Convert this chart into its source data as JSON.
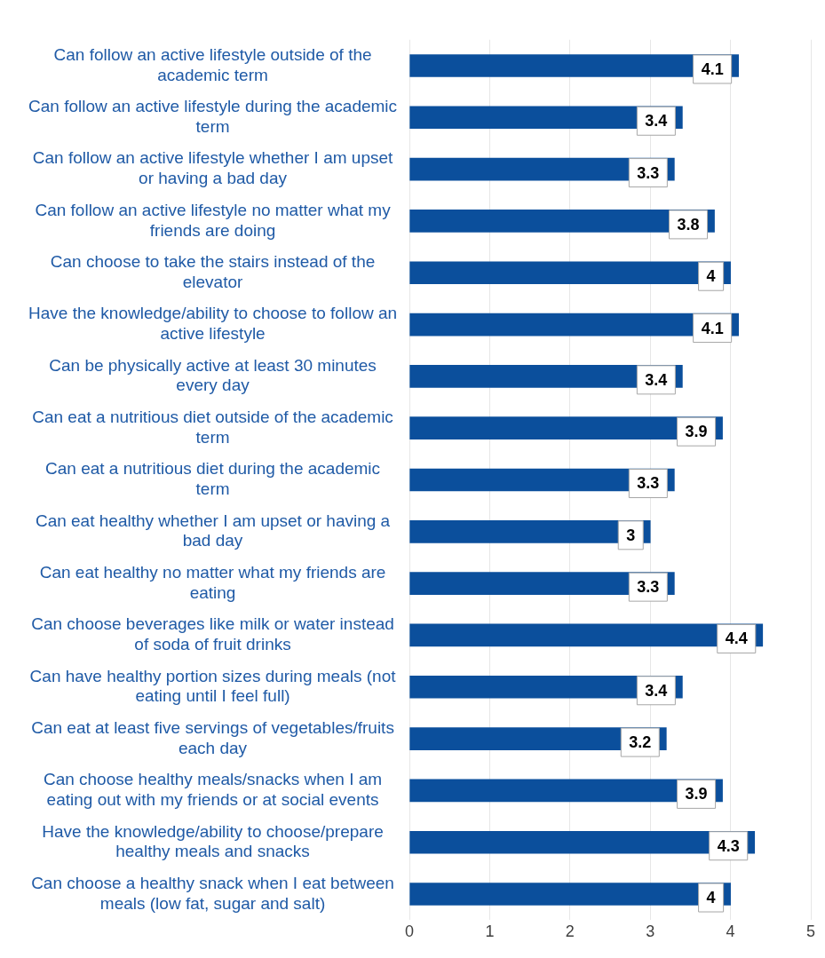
{
  "chart_data": {
    "type": "bar",
    "orientation": "horizontal",
    "categories": [
      "Can follow an active lifestyle outside of the academic term",
      "Can follow an active lifestyle during the academic term",
      "Can follow an active lifestyle whether I am upset or having a bad day",
      "Can follow an active lifestyle no matter what my friends are doing",
      "Can choose to take the stairs instead of the elevator",
      "Have the knowledge/ability to choose to follow an active lifestyle",
      "Can be physically active at least 30 minutes every day",
      "Can eat a nutritious diet outside of the academic term",
      "Can eat a nutritious diet during the academic term",
      "Can eat healthy whether I am upset or having a bad day",
      "Can eat healthy no matter what my friends are eating",
      "Can choose beverages like milk or water instead of soda of fruit drinks",
      "Can have healthy portion sizes during meals (not eating until I feel full)",
      "Can eat at least five servings of vegetables/fruits each day",
      "Can choose healthy meals/snacks when I am eating out with my friends or at social events",
      "Have the knowledge/ability to choose/prepare healthy meals and snacks",
      "Can choose a healthy snack when I eat between meals (low fat, sugar and salt)"
    ],
    "values": [
      4.1,
      3.4,
      3.3,
      3.8,
      4,
      4.1,
      3.4,
      3.9,
      3.3,
      3,
      3.3,
      4.4,
      3.4,
      3.2,
      3.9,
      4.3,
      4
    ],
    "color": "#0b4f9c",
    "xlim": [
      0,
      5
    ],
    "xticks": [
      0,
      1,
      2,
      3,
      4,
      5
    ],
    "grid": "x",
    "data_labels": true
  }
}
